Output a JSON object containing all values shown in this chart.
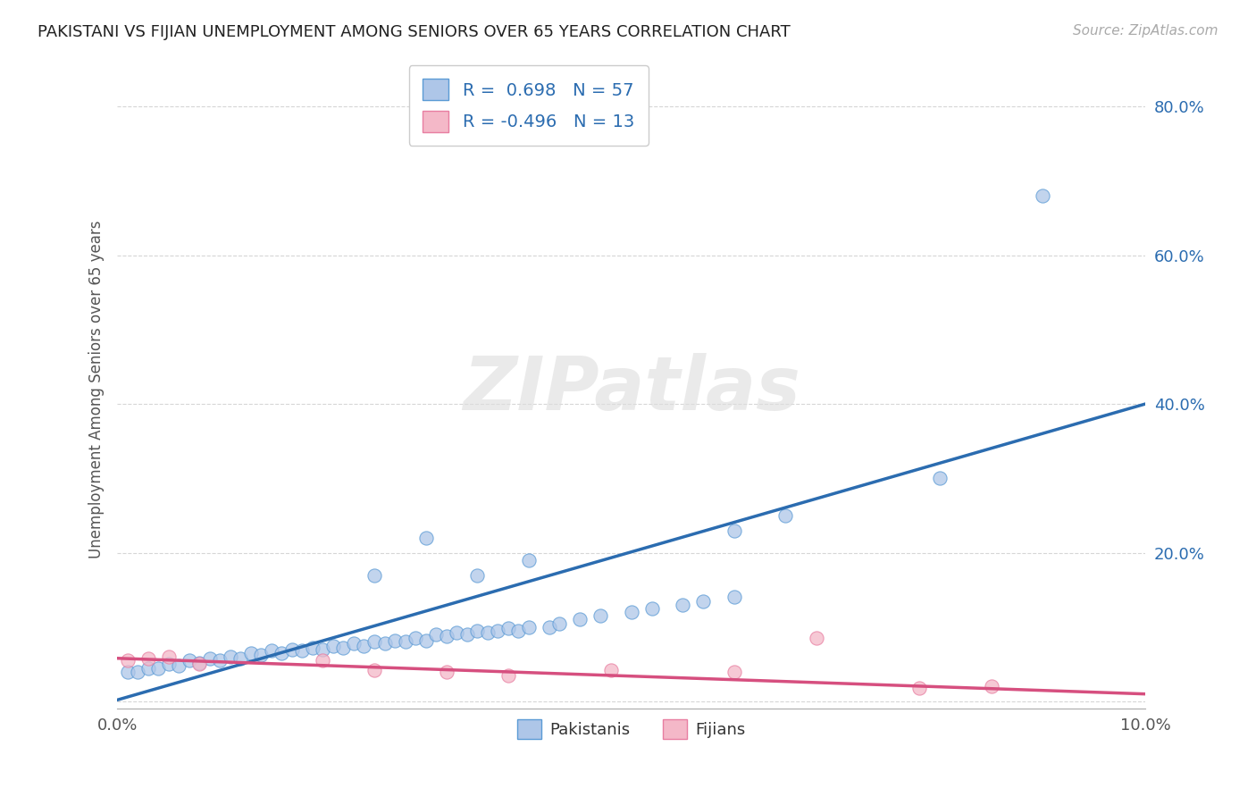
{
  "title": "PAKISTANI VS FIJIAN UNEMPLOYMENT AMONG SENIORS OVER 65 YEARS CORRELATION CHART",
  "source": "Source: ZipAtlas.com",
  "ylabel": "Unemployment Among Seniors over 65 years",
  "xlim": [
    0.0,
    0.1
  ],
  "ylim": [
    -0.01,
    0.85
  ],
  "yticks": [
    0.0,
    0.2,
    0.4,
    0.6,
    0.8
  ],
  "ytick_labels": [
    "",
    "20.0%",
    "40.0%",
    "60.0%",
    "80.0%"
  ],
  "xticks": [
    0.0,
    0.02,
    0.04,
    0.06,
    0.08,
    0.1
  ],
  "xtick_labels": [
    "0.0%",
    "",
    "",
    "",
    "",
    "10.0%"
  ],
  "blue_R": 0.698,
  "blue_N": 57,
  "pink_R": -0.496,
  "pink_N": 13,
  "blue_color": "#aec6e8",
  "blue_edge_color": "#5b9bd5",
  "blue_line_color": "#2b6cb0",
  "pink_color": "#f4b8c8",
  "pink_edge_color": "#e87ea1",
  "pink_line_color": "#d64f7f",
  "background_color": "#ffffff",
  "watermark": "ZIPatlas",
  "blue_scatter_x": [
    0.001,
    0.002,
    0.003,
    0.004,
    0.005,
    0.006,
    0.007,
    0.008,
    0.009,
    0.01,
    0.011,
    0.012,
    0.013,
    0.014,
    0.015,
    0.016,
    0.017,
    0.018,
    0.019,
    0.02,
    0.021,
    0.022,
    0.023,
    0.024,
    0.025,
    0.026,
    0.027,
    0.028,
    0.029,
    0.03,
    0.031,
    0.032,
    0.033,
    0.034,
    0.035,
    0.036,
    0.037,
    0.038,
    0.039,
    0.04,
    0.042,
    0.043,
    0.045,
    0.047,
    0.05,
    0.052,
    0.055,
    0.057,
    0.06,
    0.025,
    0.03,
    0.035,
    0.04,
    0.06,
    0.065,
    0.08,
    0.09
  ],
  "blue_scatter_y": [
    0.04,
    0.04,
    0.045,
    0.045,
    0.05,
    0.048,
    0.055,
    0.052,
    0.058,
    0.055,
    0.06,
    0.058,
    0.065,
    0.062,
    0.068,
    0.065,
    0.07,
    0.068,
    0.072,
    0.07,
    0.075,
    0.072,
    0.078,
    0.075,
    0.08,
    0.078,
    0.082,
    0.08,
    0.085,
    0.082,
    0.09,
    0.088,
    0.092,
    0.09,
    0.095,
    0.092,
    0.095,
    0.098,
    0.095,
    0.1,
    0.1,
    0.105,
    0.11,
    0.115,
    0.12,
    0.125,
    0.13,
    0.135,
    0.14,
    0.17,
    0.22,
    0.17,
    0.19,
    0.23,
    0.25,
    0.3,
    0.68
  ],
  "pink_scatter_x": [
    0.001,
    0.003,
    0.005,
    0.008,
    0.02,
    0.025,
    0.032,
    0.038,
    0.048,
    0.06,
    0.068,
    0.078,
    0.085
  ],
  "pink_scatter_y": [
    0.055,
    0.058,
    0.06,
    0.05,
    0.055,
    0.042,
    0.04,
    0.035,
    0.042,
    0.04,
    0.085,
    0.018,
    0.02
  ],
  "legend_label_blue": "Pakistanis",
  "legend_label_pink": "Fijians",
  "blue_trendline_x": [
    0.0,
    0.1
  ],
  "blue_trendline_y": [
    0.002,
    0.4
  ],
  "pink_trendline_x": [
    0.0,
    0.1
  ],
  "pink_trendline_y": [
    0.058,
    0.01
  ]
}
